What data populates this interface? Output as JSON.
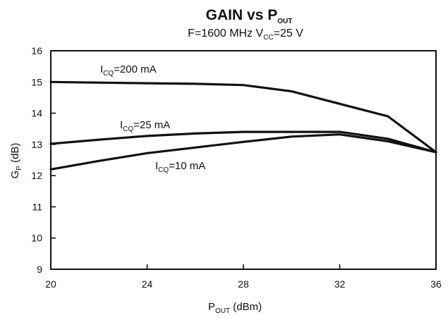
{
  "chart_data": {
    "type": "line",
    "title": {
      "main": "GAIN vs P",
      "sub": "OUT"
    },
    "subtitle": {
      "part1": "F=1600 MHz  V",
      "sub": "CC",
      "part2": "=25 V"
    },
    "xlabel": {
      "main": "P",
      "sub": "OUT",
      "rest": " (dBm)"
    },
    "ylabel": {
      "main": "G",
      "sub": "P",
      "rest": " (dB)"
    },
    "xlim": [
      20,
      36
    ],
    "ylim": [
      9,
      16
    ],
    "xticks": [
      20,
      24,
      28,
      32,
      36
    ],
    "yticks": [
      9,
      10,
      11,
      12,
      13,
      14,
      15,
      16
    ],
    "grid": false,
    "series": [
      {
        "name": {
          "main": "I",
          "sub": "CQ",
          "rest": "=200 mA"
        },
        "x": [
          20,
          22,
          24,
          26,
          28,
          30,
          32,
          34,
          36
        ],
        "y": [
          15.0,
          14.98,
          14.96,
          14.94,
          14.9,
          14.7,
          14.3,
          13.9,
          12.75
        ]
      },
      {
        "name": {
          "main": "I",
          "sub": "CQ",
          "rest": "=25 mA"
        },
        "x": [
          20,
          22,
          24,
          26,
          28,
          30,
          32,
          34,
          36
        ],
        "y": [
          13.02,
          13.15,
          13.27,
          13.35,
          13.4,
          13.4,
          13.4,
          13.18,
          12.75
        ]
      },
      {
        "name": {
          "main": "I",
          "sub": "CQ",
          "rest": "=10 mA"
        },
        "x": [
          20,
          22,
          24,
          26,
          28,
          30,
          32,
          34,
          36
        ],
        "y": [
          12.2,
          12.47,
          12.72,
          12.9,
          13.08,
          13.25,
          13.32,
          13.1,
          12.75
        ]
      }
    ]
  }
}
